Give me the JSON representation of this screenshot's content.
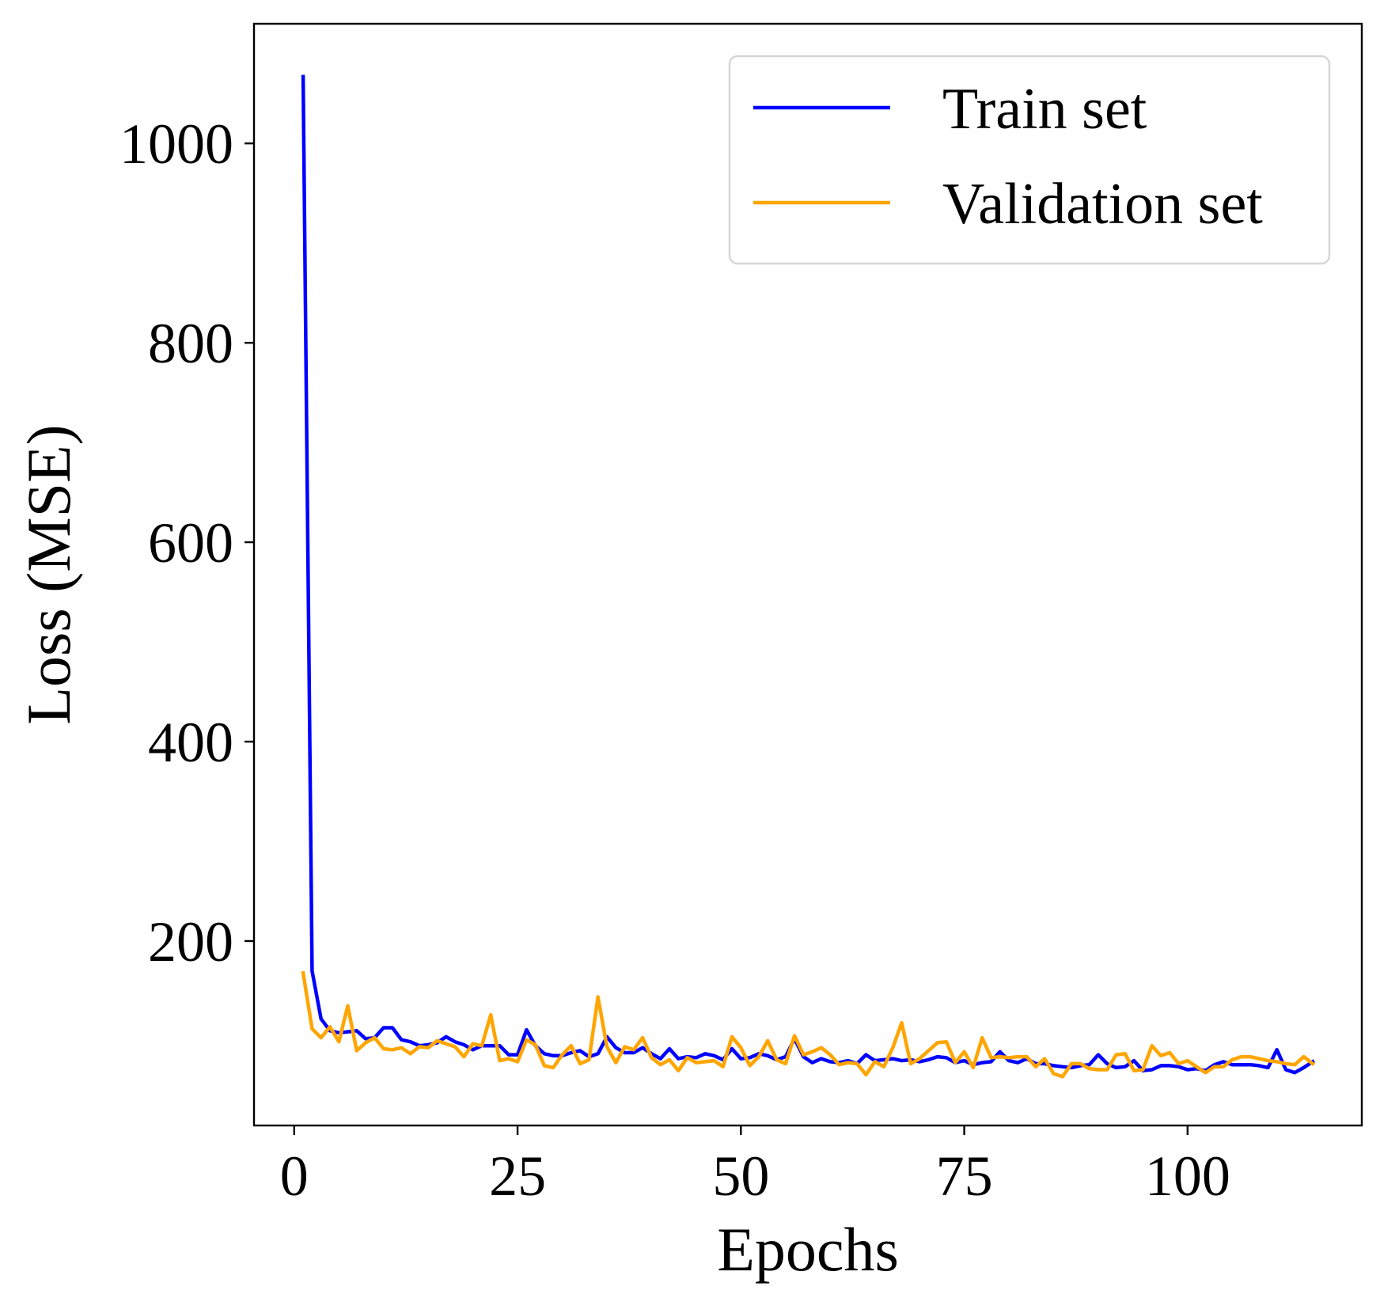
{
  "chart_data": {
    "type": "line",
    "xlabel": "Epochs",
    "ylabel": "Loss (MSE)",
    "xlim": [
      -4.5,
      119.5
    ],
    "ylim": [
      15,
      1120
    ],
    "xticks": [
      0,
      25,
      50,
      75,
      100
    ],
    "yticks": [
      200,
      400,
      600,
      800,
      1000
    ],
    "grid": false,
    "legend_position": "top-right",
    "x": [
      1,
      2,
      3,
      4,
      5,
      6,
      7,
      8,
      9,
      10,
      11,
      12,
      13,
      14,
      15,
      16,
      17,
      18,
      19,
      20,
      21,
      22,
      23,
      24,
      25,
      26,
      27,
      28,
      29,
      30,
      31,
      32,
      33,
      34,
      35,
      36,
      37,
      38,
      39,
      40,
      41,
      42,
      43,
      44,
      45,
      46,
      47,
      48,
      49,
      50,
      51,
      52,
      53,
      54,
      55,
      56,
      57,
      58,
      59,
      60,
      61,
      62,
      63,
      64,
      65,
      66,
      67,
      68,
      69,
      70,
      71,
      72,
      73,
      74,
      75,
      76,
      77,
      78,
      79,
      80,
      81,
      82,
      83,
      84,
      85,
      86,
      87,
      88,
      89,
      90,
      91,
      92,
      93,
      94,
      95,
      96,
      97,
      98,
      99,
      100,
      101,
      102,
      103,
      104,
      105,
      106,
      107,
      108,
      109,
      110,
      111,
      112,
      113,
      114
    ],
    "series": [
      {
        "name": "Train set",
        "color": "#0000ff",
        "values": [
          1067,
          170,
          122,
          110,
          108,
          109,
          110,
          102,
          103,
          113,
          113,
          101,
          99,
          95,
          96,
          98,
          104,
          99,
          96,
          91,
          95,
          95,
          95,
          86,
          86,
          111,
          95,
          87,
          85,
          85,
          88,
          90,
          84,
          87,
          104,
          93,
          88,
          88,
          93,
          87,
          82,
          92,
          82,
          84,
          83,
          87,
          85,
          81,
          92,
          82,
          83,
          87,
          85,
          81,
          84,
          102,
          84,
          78,
          82,
          79,
          78,
          80,
          77,
          86,
          80,
          81,
          82,
          80,
          81,
          79,
          81,
          84,
          83,
          78,
          80,
          76,
          78,
          79,
          89,
          80,
          78,
          82,
          77,
          77,
          75,
          74,
          73,
          75,
          76,
          86,
          77,
          73,
          74,
          80,
          70,
          71,
          75,
          75,
          74,
          71,
          72,
          70,
          76,
          79,
          76,
          76,
          76,
          75,
          73,
          91,
          71,
          68,
          73,
          79
        ]
      },
      {
        "name": "Validation set",
        "color": "#ffa500",
        "values": [
          168,
          112,
          103,
          114,
          99,
          135,
          90,
          98,
          103,
          92,
          91,
          93,
          87,
          94,
          93,
          100,
          97,
          94,
          84,
          97,
          95,
          126,
          80,
          82,
          79,
          101,
          96,
          75,
          73,
          86,
          95,
          77,
          81,
          144,
          94,
          78,
          94,
          91,
          103,
          83,
          76,
          81,
          70,
          83,
          78,
          79,
          80,
          74,
          104,
          93,
          75,
          84,
          100,
          81,
          77,
          105,
          86,
          89,
          93,
          86,
          76,
          78,
          77,
          66,
          79,
          74,
          93,
          118,
          77,
          82,
          90,
          98,
          99,
          78,
          89,
          73,
          103,
          83,
          84,
          83,
          84,
          84,
          74,
          82,
          67,
          64,
          77,
          77,
          72,
          71,
          71,
          86,
          87,
          70,
          71,
          95,
          85,
          88,
          77,
          80,
          74,
          68,
          74,
          74,
          81,
          84,
          84,
          82,
          80,
          79,
          77,
          76,
          84,
          77
        ]
      }
    ]
  }
}
